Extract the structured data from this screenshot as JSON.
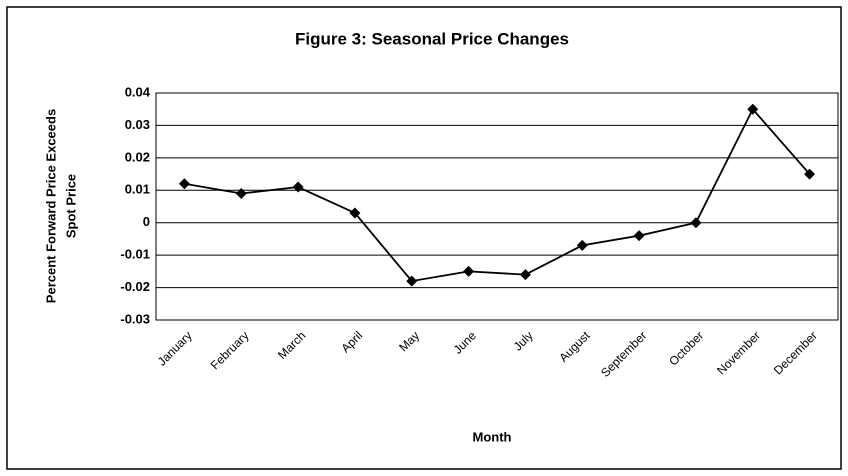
{
  "chart_data": {
    "type": "line",
    "title": "Figure 3:  Seasonal Price Changes",
    "x_label": "Month",
    "y_label": [
      "Percent Forward Price Exceeds",
      "Spot Price"
    ],
    "categories": [
      "January",
      "February",
      "March",
      "April",
      "May",
      "June",
      "July",
      "August",
      "September",
      "October",
      "November",
      "December"
    ],
    "series": [
      {
        "name": "Seasonal Price Change",
        "color": "#000000",
        "values": [
          0.012,
          0.009,
          0.011,
          0.003,
          -0.018,
          -0.015,
          -0.016,
          -0.007,
          -0.004,
          0,
          0.035,
          0.015
        ]
      }
    ],
    "ylim": [
      -0.03,
      0.04
    ],
    "yticks": [
      -0.03,
      -0.02,
      -0.01,
      0,
      0.01,
      0.02,
      0.03,
      0.04
    ],
    "grid": true
  }
}
